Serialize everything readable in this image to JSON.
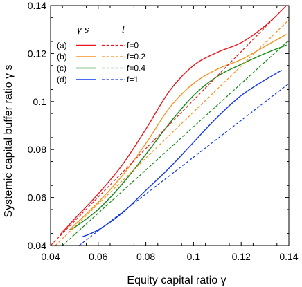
{
  "chart_data": {
    "type": "line",
    "xlabel": "Equity capital ratio  γ",
    "ylabel": "Systemic capital buffer ratio  γ s",
    "xlim": [
      0.04,
      0.14
    ],
    "ylim": [
      0.04,
      0.14
    ],
    "xticks": [
      "0.04",
      "0.06",
      "0.08",
      "0.1",
      "0.12",
      "0.14"
    ],
    "yticks": [
      "0.04",
      "0.06",
      "0.08",
      "0.1",
      "0.12",
      "0.14"
    ],
    "grid": false,
    "legend_position": "top-left",
    "legend_headers": [
      "γ s",
      "l"
    ],
    "legend_rows": [
      {
        "label": "(a)",
        "value_label": "f=0",
        "color": "#e8181e"
      },
      {
        "label": "(b)",
        "value_label": "f=0.2",
        "color": "#f5921e"
      },
      {
        "label": "(c)",
        "value_label": "f=0.4",
        "color": "#138a14"
      },
      {
        "label": "(d)",
        "value_label": "f=1",
        "color": "#1238e6"
      }
    ],
    "series": [
      {
        "style": "solid",
        "color": "#e8181e",
        "x": [
          0.044,
          0.05,
          0.06,
          0.07,
          0.08,
          0.09,
          0.1,
          0.11,
          0.12,
          0.13,
          0.1385
        ],
        "y": [
          0.0445,
          0.051,
          0.0615,
          0.0735,
          0.0885,
          0.1045,
          0.115,
          0.1205,
          0.1245,
          0.1315,
          0.1395
        ]
      },
      {
        "style": "solid",
        "color": "#f5921e",
        "x": [
          0.048,
          0.05,
          0.06,
          0.07,
          0.08,
          0.09,
          0.1,
          0.11,
          0.12,
          0.13,
          0.139
        ],
        "y": [
          0.0465,
          0.0485,
          0.058,
          0.069,
          0.0825,
          0.0975,
          0.1075,
          0.1135,
          0.1175,
          0.123,
          0.128
        ]
      },
      {
        "style": "solid",
        "color": "#138a14",
        "x": [
          0.048,
          0.05,
          0.06,
          0.07,
          0.08,
          0.09,
          0.1,
          0.11,
          0.12,
          0.13,
          0.139
        ],
        "y": [
          0.0465,
          0.0475,
          0.055,
          0.0655,
          0.078,
          0.091,
          0.1025,
          0.1105,
          0.1155,
          0.12,
          0.1235
        ]
      },
      {
        "style": "solid",
        "color": "#1238e6",
        "x": [
          0.053,
          0.06,
          0.07,
          0.08,
          0.09,
          0.1,
          0.11,
          0.12,
          0.13,
          0.137
        ],
        "y": [
          0.0435,
          0.0465,
          0.0535,
          0.063,
          0.0725,
          0.083,
          0.0935,
          0.1025,
          0.109,
          0.113
        ]
      },
      {
        "style": "dashed",
        "color": "#e8181e",
        "x": [
          0.04,
          0.14
        ],
        "y": [
          0.04,
          0.141
        ]
      },
      {
        "style": "dashed",
        "color": "#f5921e",
        "x": [
          0.042,
          0.14
        ],
        "y": [
          0.04,
          0.134
        ]
      },
      {
        "style": "dashed",
        "color": "#138a14",
        "x": [
          0.045,
          0.14
        ],
        "y": [
          0.04,
          0.1255
        ]
      },
      {
        "style": "dashed",
        "color": "#1238e6",
        "x": [
          0.052,
          0.14
        ],
        "y": [
          0.04,
          0.1075
        ]
      }
    ]
  }
}
